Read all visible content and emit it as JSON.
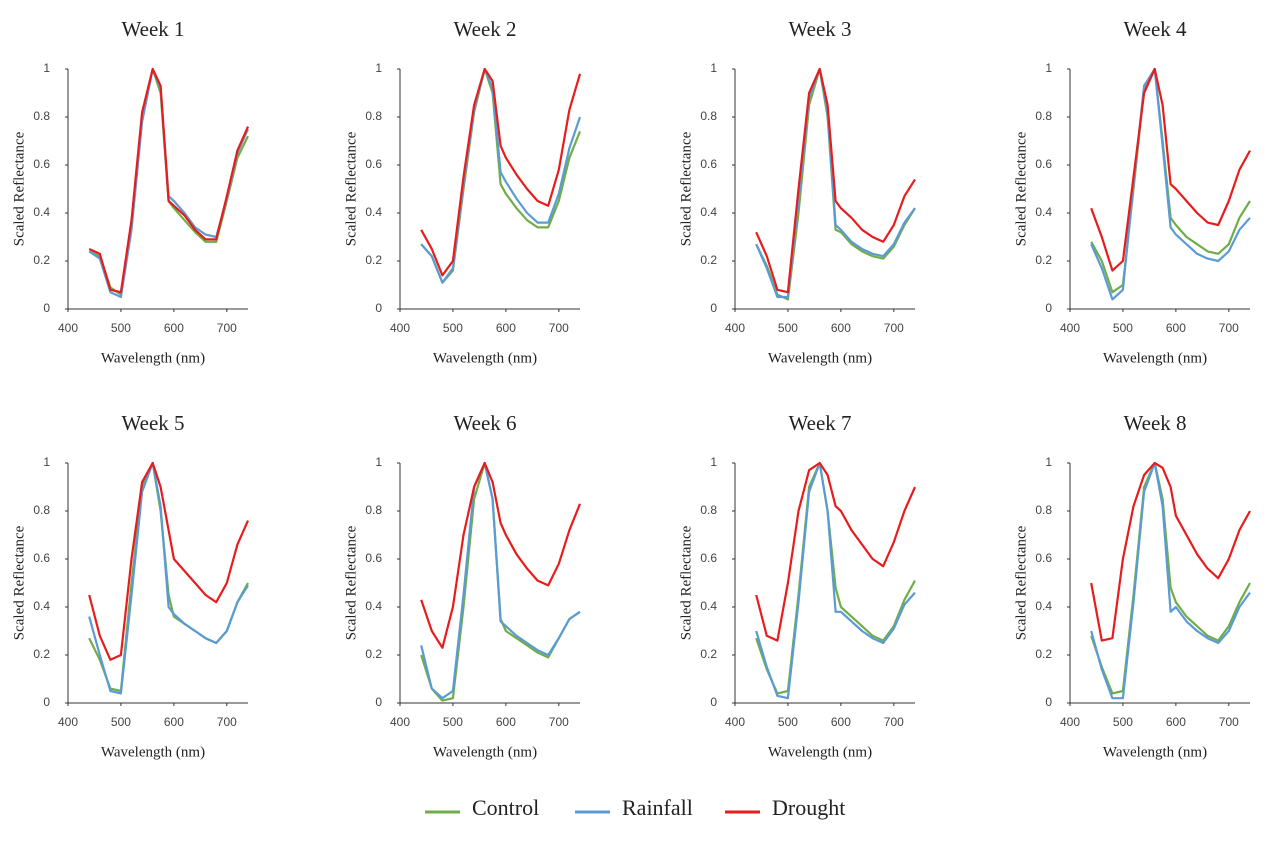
{
  "chart_data": [
    {
      "type": "line",
      "title": "Week 1",
      "x_label": "Wavelength (nm)",
      "y_label": "Scaled Reflectance",
      "xlim": [
        400,
        740
      ],
      "xticks": [
        400,
        500,
        600,
        700
      ],
      "ylim": [
        0,
        1
      ],
      "yticks": [
        0,
        0.2,
        0.4,
        0.6,
        0.8,
        1
      ],
      "x": [
        440,
        460,
        480,
        500,
        520,
        540,
        560,
        575,
        590,
        600,
        620,
        640,
        660,
        680,
        700,
        720,
        740
      ],
      "series": [
        {
          "name": "Control",
          "color": "#70ad47",
          "values": [
            0.24,
            0.22,
            0.09,
            0.06,
            0.35,
            0.8,
            1.0,
            0.9,
            0.45,
            0.42,
            0.37,
            0.32,
            0.28,
            0.28,
            0.45,
            0.63,
            0.72
          ]
        },
        {
          "name": "Rainfall",
          "color": "#5b9bd5",
          "values": [
            0.24,
            0.21,
            0.07,
            0.05,
            0.33,
            0.78,
            1.0,
            0.92,
            0.47,
            0.45,
            0.4,
            0.34,
            0.31,
            0.3,
            0.46,
            0.65,
            0.75
          ]
        },
        {
          "name": "Drought",
          "color": "#e81c1c",
          "values": [
            0.25,
            0.23,
            0.08,
            0.07,
            0.37,
            0.82,
            1.0,
            0.93,
            0.45,
            0.43,
            0.39,
            0.33,
            0.29,
            0.29,
            0.47,
            0.66,
            0.76
          ]
        }
      ]
    },
    {
      "type": "line",
      "title": "Week 2",
      "x_label": "Wavelength (nm)",
      "y_label": "Scaled Reflectance",
      "xlim": [
        400,
        740
      ],
      "xticks": [
        400,
        500,
        600,
        700
      ],
      "ylim": [
        0,
        1
      ],
      "yticks": [
        0,
        0.2,
        0.4,
        0.6,
        0.8,
        1
      ],
      "x": [
        440,
        460,
        480,
        500,
        520,
        540,
        560,
        575,
        590,
        600,
        620,
        640,
        660,
        680,
        700,
        720,
        740
      ],
      "series": [
        {
          "name": "Control",
          "color": "#70ad47",
          "values": [
            0.27,
            0.22,
            0.11,
            0.16,
            0.5,
            0.82,
            1.0,
            0.9,
            0.52,
            0.48,
            0.42,
            0.37,
            0.34,
            0.34,
            0.45,
            0.63,
            0.74
          ]
        },
        {
          "name": "Rainfall",
          "color": "#5b9bd5",
          "values": [
            0.27,
            0.22,
            0.11,
            0.17,
            0.52,
            0.83,
            1.0,
            0.92,
            0.57,
            0.53,
            0.46,
            0.4,
            0.36,
            0.36,
            0.48,
            0.67,
            0.8
          ]
        },
        {
          "name": "Drought",
          "color": "#e81c1c",
          "values": [
            0.33,
            0.25,
            0.14,
            0.2,
            0.55,
            0.85,
            1.0,
            0.95,
            0.68,
            0.63,
            0.56,
            0.5,
            0.45,
            0.43,
            0.58,
            0.83,
            0.98
          ]
        }
      ]
    },
    {
      "type": "line",
      "title": "Week 3",
      "x_label": "Wavelength (nm)",
      "y_label": "Scaled Reflectance",
      "xlim": [
        400,
        740
      ],
      "xticks": [
        400,
        500,
        600,
        700
      ],
      "ylim": [
        0,
        1
      ],
      "yticks": [
        0,
        0.2,
        0.4,
        0.6,
        0.8,
        1
      ],
      "x": [
        440,
        460,
        480,
        500,
        520,
        540,
        560,
        575,
        590,
        600,
        620,
        640,
        660,
        680,
        700,
        720,
        740
      ],
      "series": [
        {
          "name": "Control",
          "color": "#70ad47",
          "values": [
            0.27,
            0.18,
            0.06,
            0.04,
            0.4,
            0.85,
            1.0,
            0.8,
            0.33,
            0.32,
            0.27,
            0.24,
            0.22,
            0.21,
            0.26,
            0.35,
            0.42
          ]
        },
        {
          "name": "Rainfall",
          "color": "#5b9bd5",
          "values": [
            0.27,
            0.17,
            0.05,
            0.05,
            0.45,
            0.88,
            1.0,
            0.82,
            0.35,
            0.33,
            0.28,
            0.25,
            0.23,
            0.22,
            0.27,
            0.36,
            0.42
          ]
        },
        {
          "name": "Drought",
          "color": "#e81c1c",
          "values": [
            0.32,
            0.22,
            0.08,
            0.07,
            0.5,
            0.9,
            1.0,
            0.85,
            0.45,
            0.42,
            0.38,
            0.33,
            0.3,
            0.28,
            0.35,
            0.47,
            0.54
          ]
        }
      ]
    },
    {
      "type": "line",
      "title": "Week 4",
      "x_label": "Wavelength (nm)",
      "y_label": "Scaled Reflectance",
      "xlim": [
        400,
        740
      ],
      "xticks": [
        400,
        500,
        600,
        700
      ],
      "ylim": [
        0,
        1
      ],
      "yticks": [
        0,
        0.2,
        0.4,
        0.6,
        0.8,
        1
      ],
      "x": [
        440,
        460,
        480,
        500,
        520,
        540,
        560,
        575,
        590,
        600,
        620,
        640,
        660,
        680,
        700,
        720,
        740
      ],
      "series": [
        {
          "name": "Control",
          "color": "#70ad47",
          "values": [
            0.28,
            0.2,
            0.07,
            0.1,
            0.5,
            0.92,
            1.0,
            0.7,
            0.38,
            0.35,
            0.3,
            0.27,
            0.24,
            0.23,
            0.27,
            0.38,
            0.45
          ]
        },
        {
          "name": "Rainfall",
          "color": "#5b9bd5",
          "values": [
            0.27,
            0.17,
            0.04,
            0.08,
            0.52,
            0.93,
            1.0,
            0.68,
            0.34,
            0.31,
            0.27,
            0.23,
            0.21,
            0.2,
            0.24,
            0.33,
            0.38
          ]
        },
        {
          "name": "Drought",
          "color": "#e81c1c",
          "values": [
            0.42,
            0.3,
            0.16,
            0.2,
            0.55,
            0.9,
            1.0,
            0.85,
            0.52,
            0.5,
            0.45,
            0.4,
            0.36,
            0.35,
            0.45,
            0.58,
            0.66
          ]
        }
      ]
    },
    {
      "type": "line",
      "title": "Week 5",
      "x_label": "Wavelength (nm)",
      "y_label": "Scaled Reflectance",
      "xlim": [
        400,
        740
      ],
      "xticks": [
        400,
        500,
        600,
        700
      ],
      "ylim": [
        0,
        1
      ],
      "yticks": [
        0,
        0.2,
        0.4,
        0.6,
        0.8,
        1
      ],
      "x": [
        440,
        460,
        480,
        500,
        520,
        540,
        560,
        575,
        590,
        600,
        620,
        640,
        660,
        680,
        700,
        720,
        740
      ],
      "series": [
        {
          "name": "Control",
          "color": "#70ad47",
          "values": [
            0.27,
            0.18,
            0.06,
            0.05,
            0.5,
            0.9,
            1.0,
            0.8,
            0.45,
            0.36,
            0.33,
            0.3,
            0.27,
            0.25,
            0.3,
            0.42,
            0.5
          ]
        },
        {
          "name": "Rainfall",
          "color": "#5b9bd5",
          "values": [
            0.36,
            0.2,
            0.05,
            0.04,
            0.45,
            0.88,
            1.0,
            0.82,
            0.4,
            0.37,
            0.33,
            0.3,
            0.27,
            0.25,
            0.3,
            0.42,
            0.49
          ]
        },
        {
          "name": "Drought",
          "color": "#e81c1c",
          "values": [
            0.45,
            0.28,
            0.18,
            0.2,
            0.6,
            0.92,
            1.0,
            0.9,
            0.72,
            0.6,
            0.55,
            0.5,
            0.45,
            0.42,
            0.5,
            0.66,
            0.76
          ]
        }
      ]
    },
    {
      "type": "line",
      "title": "Week 6",
      "x_label": "Wavelength (nm)",
      "y_label": "Scaled Reflectance",
      "xlim": [
        400,
        740
      ],
      "xticks": [
        400,
        500,
        600,
        700
      ],
      "ylim": [
        0,
        1
      ],
      "yticks": [
        0,
        0.2,
        0.4,
        0.6,
        0.8,
        1
      ],
      "x": [
        440,
        460,
        480,
        500,
        520,
        540,
        560,
        575,
        590,
        600,
        620,
        640,
        660,
        680,
        700,
        720,
        740
      ],
      "series": [
        {
          "name": "Control",
          "color": "#70ad47",
          "values": [
            0.2,
            0.06,
            0.01,
            0.02,
            0.4,
            0.85,
            1.0,
            0.85,
            0.35,
            0.3,
            0.27,
            0.24,
            0.21,
            0.19,
            0.27,
            0.35,
            0.38
          ]
        },
        {
          "name": "Rainfall",
          "color": "#5b9bd5",
          "values": [
            0.24,
            0.06,
            0.02,
            0.05,
            0.45,
            0.9,
            1.0,
            0.85,
            0.34,
            0.32,
            0.28,
            0.25,
            0.22,
            0.2,
            0.27,
            0.35,
            0.38
          ]
        },
        {
          "name": "Drought",
          "color": "#e81c1c",
          "values": [
            0.43,
            0.3,
            0.23,
            0.4,
            0.7,
            0.9,
            1.0,
            0.92,
            0.75,
            0.7,
            0.62,
            0.56,
            0.51,
            0.49,
            0.58,
            0.72,
            0.83
          ]
        }
      ]
    },
    {
      "type": "line",
      "title": "Week 7",
      "x_label": "Wavelength (nm)",
      "y_label": "Scaled Reflectance",
      "xlim": [
        400,
        740
      ],
      "xticks": [
        400,
        500,
        600,
        700
      ],
      "ylim": [
        0,
        1
      ],
      "yticks": [
        0,
        0.2,
        0.4,
        0.6,
        0.8,
        1
      ],
      "x": [
        440,
        460,
        480,
        500,
        520,
        540,
        560,
        575,
        590,
        600,
        620,
        640,
        660,
        680,
        700,
        720,
        740
      ],
      "series": [
        {
          "name": "Control",
          "color": "#70ad47",
          "values": [
            0.27,
            0.14,
            0.04,
            0.05,
            0.45,
            0.9,
            1.0,
            0.8,
            0.48,
            0.4,
            0.36,
            0.32,
            0.28,
            0.26,
            0.32,
            0.43,
            0.51
          ]
        },
        {
          "name": "Rainfall",
          "color": "#5b9bd5",
          "values": [
            0.3,
            0.15,
            0.03,
            0.02,
            0.42,
            0.88,
            1.0,
            0.8,
            0.38,
            0.38,
            0.34,
            0.3,
            0.27,
            0.25,
            0.31,
            0.41,
            0.46
          ]
        },
        {
          "name": "Drought",
          "color": "#e81c1c",
          "values": [
            0.45,
            0.28,
            0.26,
            0.5,
            0.8,
            0.97,
            1.0,
            0.95,
            0.82,
            0.8,
            0.72,
            0.66,
            0.6,
            0.57,
            0.67,
            0.8,
            0.9
          ]
        }
      ]
    },
    {
      "type": "line",
      "title": "Week 8",
      "x_label": "Wavelength (nm)",
      "y_label": "Scaled Reflectance",
      "xlim": [
        400,
        740
      ],
      "xticks": [
        400,
        500,
        600,
        700
      ],
      "ylim": [
        0,
        1
      ],
      "yticks": [
        0,
        0.2,
        0.4,
        0.6,
        0.8,
        1
      ],
      "x": [
        440,
        460,
        480,
        500,
        520,
        540,
        560,
        575,
        590,
        600,
        620,
        640,
        660,
        680,
        700,
        720,
        740
      ],
      "series": [
        {
          "name": "Control",
          "color": "#70ad47",
          "values": [
            0.28,
            0.15,
            0.04,
            0.05,
            0.45,
            0.9,
            1.0,
            0.85,
            0.48,
            0.42,
            0.36,
            0.32,
            0.28,
            0.26,
            0.32,
            0.42,
            0.5
          ]
        },
        {
          "name": "Rainfall",
          "color": "#5b9bd5",
          "values": [
            0.3,
            0.14,
            0.02,
            0.02,
            0.42,
            0.88,
            1.0,
            0.82,
            0.38,
            0.4,
            0.34,
            0.3,
            0.27,
            0.25,
            0.3,
            0.4,
            0.46
          ]
        },
        {
          "name": "Drought",
          "color": "#e81c1c",
          "values": [
            0.5,
            0.26,
            0.27,
            0.6,
            0.82,
            0.95,
            1.0,
            0.98,
            0.9,
            0.78,
            0.7,
            0.62,
            0.56,
            0.52,
            0.6,
            0.72,
            0.8
          ]
        }
      ]
    }
  ]
}
